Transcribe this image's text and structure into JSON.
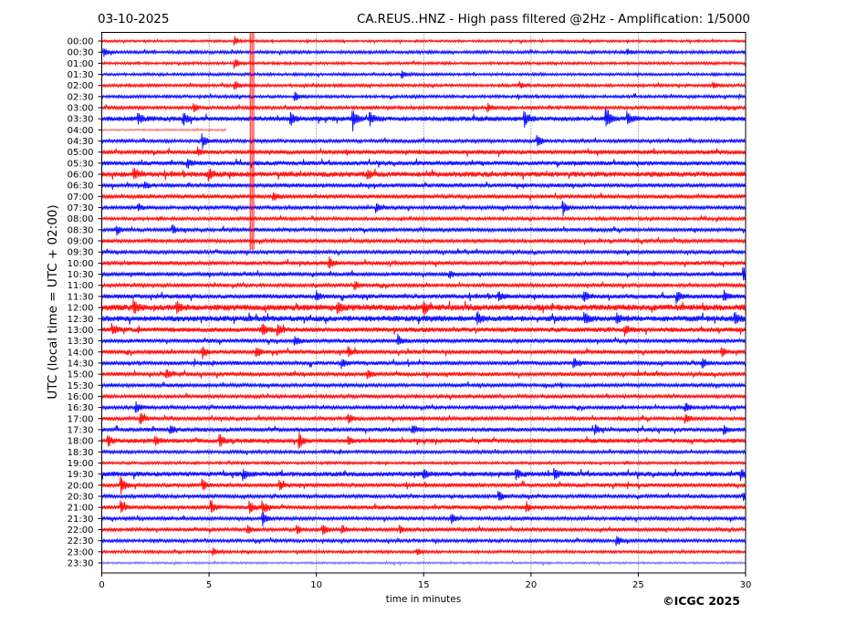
{
  "chart_data": {
    "type": "line",
    "title_left": "03-10-2025",
    "title_right": "CA.REUS..HNZ - High pass filtered @2Hz - Amplification: 1/5000",
    "xlabel": "time in minutes",
    "ylabel": "UTC (local time = UTC + 02:00)",
    "xlim": [
      0,
      30
    ],
    "xticks": [
      "0",
      "5",
      "10",
      "15",
      "20",
      "25",
      "30"
    ],
    "grid": "vertical dotted at each x tick",
    "copyright": "©ICGC 2025",
    "colors": {
      "even": "#ff0000",
      "odd": "#0000ff"
    },
    "rows": [
      "00:00",
      "00:30",
      "01:00",
      "01:30",
      "02:00",
      "02:30",
      "03:00",
      "03:30",
      "04:00",
      "04:30",
      "05:00",
      "05:30",
      "06:00",
      "06:30",
      "07:00",
      "07:30",
      "08:00",
      "08:30",
      "09:00",
      "09:30",
      "10:00",
      "10:30",
      "11:00",
      "11:30",
      "12:00",
      "12:30",
      "13:00",
      "13:30",
      "14:00",
      "14:30",
      "15:00",
      "15:30",
      "16:00",
      "16:30",
      "17:00",
      "17:30",
      "18:00",
      "18:30",
      "19:00",
      "19:30",
      "20:00",
      "20:30",
      "21:00",
      "21:30",
      "22:00",
      "22:30",
      "23:00",
      "23:30"
    ],
    "noise_level": [
      1.0,
      1.3,
      1.2,
      1.2,
      1.3,
      1.3,
      1.5,
      2.2,
      0.8,
      1.5,
      2.0,
      2.0,
      2.4,
      1.8,
      1.8,
      1.6,
      1.4,
      1.6,
      1.6,
      1.6,
      1.8,
      1.8,
      1.6,
      2.0,
      2.8,
      2.6,
      2.2,
      1.8,
      1.8,
      1.8,
      1.8,
      1.6,
      1.6,
      1.6,
      1.6,
      1.8,
      2.0,
      1.4,
      1.2,
      2.2,
      1.8,
      1.6,
      1.8,
      1.6,
      1.6,
      1.4,
      1.2,
      0.9
    ],
    "gap": [
      {
        "row": "04:00",
        "data_ends_minute": 5.8
      }
    ],
    "large_event": {
      "minute": 7.0,
      "from_row": "00:00",
      "to_row": "08:30"
    },
    "events": [
      {
        "row": "00:00",
        "minute": 6.2,
        "amplitude": 5
      },
      {
        "row": "00:30",
        "minute": 0.1,
        "amplitude": 5
      },
      {
        "row": "00:30",
        "minute": 24.5,
        "amplitude": 3
      },
      {
        "row": "01:00",
        "minute": 6.2,
        "amplitude": 5
      },
      {
        "row": "01:30",
        "minute": 14.0,
        "amplitude": 4
      },
      {
        "row": "02:00",
        "minute": 6.2,
        "amplitude": 5
      },
      {
        "row": "02:00",
        "minute": 19.5,
        "amplitude": 4
      },
      {
        "row": "02:00",
        "minute": 28.5,
        "amplitude": 4
      },
      {
        "row": "02:30",
        "minute": 9.0,
        "amplitude": 5
      },
      {
        "row": "03:00",
        "minute": 4.3,
        "amplitude": 4
      },
      {
        "row": "03:00",
        "minute": 18.0,
        "amplitude": 5
      },
      {
        "row": "03:30",
        "minute": 1.7,
        "amplitude": 6
      },
      {
        "row": "03:30",
        "minute": 3.8,
        "amplitude": 7
      },
      {
        "row": "03:30",
        "minute": 8.8,
        "amplitude": 7
      },
      {
        "row": "03:30",
        "minute": 11.7,
        "amplitude": 12
      },
      {
        "row": "03:30",
        "minute": 12.5,
        "amplitude": 8
      },
      {
        "row": "03:30",
        "minute": 19.7,
        "amplitude": 10
      },
      {
        "row": "03:30",
        "minute": 23.5,
        "amplitude": 10
      },
      {
        "row": "03:30",
        "minute": 24.5,
        "amplitude": 7
      },
      {
        "row": "04:00",
        "minute": 11.8,
        "amplitude": 12
      },
      {
        "row": "04:30",
        "minute": 4.7,
        "amplitude": 7
      },
      {
        "row": "04:30",
        "minute": 20.3,
        "amplitude": 7
      },
      {
        "row": "05:00",
        "minute": 4.5,
        "amplitude": 4
      },
      {
        "row": "05:30",
        "minute": 4.0,
        "amplitude": 5
      },
      {
        "row": "06:00",
        "minute": 1.5,
        "amplitude": 5
      },
      {
        "row": "06:00",
        "minute": 5.0,
        "amplitude": 6
      },
      {
        "row": "06:00",
        "minute": 12.4,
        "amplitude": 5
      },
      {
        "row": "06:30",
        "minute": 2.0,
        "amplitude": 4
      },
      {
        "row": "07:00",
        "minute": 8.0,
        "amplitude": 6
      },
      {
        "row": "07:30",
        "minute": 1.7,
        "amplitude": 4
      },
      {
        "row": "07:30",
        "minute": 12.8,
        "amplitude": 5
      },
      {
        "row": "07:30",
        "minute": 21.5,
        "amplitude": 8
      },
      {
        "row": "08:30",
        "minute": 0.7,
        "amplitude": 5
      },
      {
        "row": "08:30",
        "minute": 3.3,
        "amplitude": 5
      },
      {
        "row": "10:00",
        "minute": 10.6,
        "amplitude": 6
      },
      {
        "row": "10:30",
        "minute": 16.2,
        "amplitude": 4
      },
      {
        "row": "10:30",
        "minute": 29.9,
        "amplitude": 8
      },
      {
        "row": "11:00",
        "minute": 11.8,
        "amplitude": 5
      },
      {
        "row": "11:30",
        "minute": 10.0,
        "amplitude": 5
      },
      {
        "row": "11:30",
        "minute": 18.5,
        "amplitude": 5
      },
      {
        "row": "11:30",
        "minute": 22.5,
        "amplitude": 5
      },
      {
        "row": "11:30",
        "minute": 26.8,
        "amplitude": 7
      },
      {
        "row": "11:30",
        "minute": 29.0,
        "amplitude": 5
      },
      {
        "row": "12:00",
        "minute": 1.5,
        "amplitude": 7
      },
      {
        "row": "12:00",
        "minute": 3.5,
        "amplitude": 6
      },
      {
        "row": "12:00",
        "minute": 11.0,
        "amplitude": 6
      },
      {
        "row": "12:00",
        "minute": 15.0,
        "amplitude": 6
      },
      {
        "row": "12:30",
        "minute": 17.5,
        "amplitude": 6
      },
      {
        "row": "12:30",
        "minute": 22.5,
        "amplitude": 6
      },
      {
        "row": "12:30",
        "minute": 24.0,
        "amplitude": 5
      },
      {
        "row": "12:30",
        "minute": 29.5,
        "amplitude": 6
      },
      {
        "row": "13:00",
        "minute": 0.5,
        "amplitude": 6
      },
      {
        "row": "13:00",
        "minute": 7.5,
        "amplitude": 6
      },
      {
        "row": "13:00",
        "minute": 8.2,
        "amplitude": 6
      },
      {
        "row": "13:00",
        "minute": 24.4,
        "amplitude": 4
      },
      {
        "row": "13:30",
        "minute": 9.0,
        "amplitude": 5
      },
      {
        "row": "13:30",
        "minute": 13.8,
        "amplitude": 6
      },
      {
        "row": "14:00",
        "minute": 4.7,
        "amplitude": 7
      },
      {
        "row": "14:00",
        "minute": 7.2,
        "amplitude": 6
      },
      {
        "row": "14:00",
        "minute": 11.5,
        "amplitude": 5
      },
      {
        "row": "14:00",
        "minute": 28.9,
        "amplitude": 5
      },
      {
        "row": "14:30",
        "minute": 11.2,
        "amplitude": 5
      },
      {
        "row": "14:30",
        "minute": 22.0,
        "amplitude": 5
      },
      {
        "row": "14:30",
        "minute": 28.0,
        "amplitude": 5
      },
      {
        "row": "15:00",
        "minute": 3.0,
        "amplitude": 5
      },
      {
        "row": "15:00",
        "minute": 12.4,
        "amplitude": 4
      },
      {
        "row": "16:30",
        "minute": 1.6,
        "amplitude": 6
      },
      {
        "row": "16:30",
        "minute": 27.2,
        "amplitude": 5
      },
      {
        "row": "17:00",
        "minute": 1.8,
        "amplitude": 6
      },
      {
        "row": "17:00",
        "minute": 11.5,
        "amplitude": 5
      },
      {
        "row": "17:00",
        "minute": 27.2,
        "amplitude": 5
      },
      {
        "row": "17:30",
        "minute": 3.2,
        "amplitude": 5
      },
      {
        "row": "17:30",
        "minute": 14.5,
        "amplitude": 4
      },
      {
        "row": "17:30",
        "minute": 23.0,
        "amplitude": 5
      },
      {
        "row": "17:30",
        "minute": 29.0,
        "amplitude": 5
      },
      {
        "row": "18:00",
        "minute": 0.3,
        "amplitude": 5
      },
      {
        "row": "18:00",
        "minute": 2.5,
        "amplitude": 5
      },
      {
        "row": "18:00",
        "minute": 5.5,
        "amplitude": 6
      },
      {
        "row": "18:00",
        "minute": 9.2,
        "amplitude": 8
      },
      {
        "row": "18:00",
        "minute": 11.5,
        "amplitude": 4
      },
      {
        "row": "19:30",
        "minute": 6.6,
        "amplitude": 6
      },
      {
        "row": "19:30",
        "minute": 15.0,
        "amplitude": 5
      },
      {
        "row": "19:30",
        "minute": 19.3,
        "amplitude": 6
      },
      {
        "row": "19:30",
        "minute": 21.1,
        "amplitude": 6
      },
      {
        "row": "19:30",
        "minute": 29.8,
        "amplitude": 6
      },
      {
        "row": "20:00",
        "minute": 0.9,
        "amplitude": 9
      },
      {
        "row": "20:00",
        "minute": 4.7,
        "amplitude": 6
      },
      {
        "row": "20:00",
        "minute": 8.3,
        "amplitude": 5
      },
      {
        "row": "20:30",
        "minute": 18.5,
        "amplitude": 6
      },
      {
        "row": "20:30",
        "minute": 29.9,
        "amplitude": 5
      },
      {
        "row": "21:00",
        "minute": 0.9,
        "amplitude": 6
      },
      {
        "row": "21:00",
        "minute": 5.1,
        "amplitude": 7
      },
      {
        "row": "21:00",
        "minute": 6.9,
        "amplitude": 7
      },
      {
        "row": "21:00",
        "minute": 7.5,
        "amplitude": 7
      },
      {
        "row": "21:00",
        "minute": 19.8,
        "amplitude": 5
      },
      {
        "row": "21:30",
        "minute": 7.5,
        "amplitude": 7
      },
      {
        "row": "21:30",
        "minute": 16.3,
        "amplitude": 5
      },
      {
        "row": "22:00",
        "minute": 6.8,
        "amplitude": 5
      },
      {
        "row": "22:00",
        "minute": 9.1,
        "amplitude": 5
      },
      {
        "row": "22:00",
        "minute": 10.3,
        "amplitude": 6
      },
      {
        "row": "22:00",
        "minute": 11.2,
        "amplitude": 5
      },
      {
        "row": "22:00",
        "minute": 13.9,
        "amplitude": 4
      },
      {
        "row": "22:30",
        "minute": 24.0,
        "amplitude": 5
      },
      {
        "row": "23:00",
        "minute": 5.2,
        "amplitude": 4
      },
      {
        "row": "23:00",
        "minute": 14.7,
        "amplitude": 4
      }
    ]
  }
}
